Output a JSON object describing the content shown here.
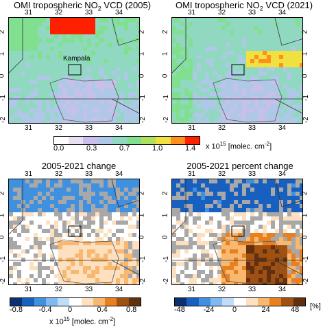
{
  "chart_data": [
    {
      "type": "heatmap",
      "title": "OMI tropospheric NO",
      "title_sub": "2",
      "title_suffix": " VCD (2005)",
      "x_ticks": [
        "31",
        "32",
        "33",
        "34"
      ],
      "y_ticks": [
        "2",
        "1",
        "0",
        "-1",
        "-2"
      ],
      "annotation": "Kampala"
    },
    {
      "type": "heatmap",
      "title": "OMI tropospheric NO",
      "title_sub": "2",
      "title_suffix": " VCD (2021)",
      "x_ticks": [
        "31",
        "32",
        "33",
        "34"
      ],
      "y_ticks": [
        "2",
        "1",
        "0",
        "-1",
        "-2"
      ]
    },
    {
      "type": "heatmap",
      "title": "2005-2021 change",
      "x_ticks": [
        "31",
        "32",
        "33",
        "34"
      ],
      "y_ticks": [
        "2",
        "1",
        "0",
        "-1",
        "-2"
      ]
    },
    {
      "type": "heatmap",
      "title": "2005-2021 percent change",
      "x_ticks": [
        "31",
        "32",
        "33",
        "34"
      ],
      "y_ticks": [
        "2",
        "1",
        "0",
        "-1",
        "-2"
      ]
    }
  ],
  "colorbars": {
    "vcd": {
      "ticks": [
        "0.0",
        "0.3",
        "0.7",
        "1.0",
        "1.4"
      ],
      "unit_prefix": "x 10",
      "unit_exp": "15",
      "unit_suffix": " [molec. cm",
      "unit_exp2": "-2",
      "unit_close": "]",
      "colors": [
        "#ffffff",
        "#e8e0f0",
        "#c8c0e8",
        "#b0c8e8",
        "#90d8c0",
        "#80e090",
        "#b0e060",
        "#f0e040",
        "#ff9020",
        "#ff2000"
      ]
    },
    "change": {
      "ticks": [
        "-0.8",
        "-0.4",
        "0",
        "0.4",
        "0.8"
      ],
      "unit_prefix": "x 10",
      "unit_exp": "15",
      "unit_suffix": " [molec. cm",
      "unit_exp2": "-2",
      "unit_close": "]",
      "colors": [
        "#0a3070",
        "#1860c0",
        "#4090e0",
        "#80b8f0",
        "#c0dcf8",
        "#ffffff",
        "#fde0c0",
        "#f8b870",
        "#e88020",
        "#a05010",
        "#603010"
      ]
    },
    "percent": {
      "ticks": [
        "-48",
        "-24",
        "0",
        "24",
        "48"
      ],
      "unit": "[%]",
      "colors": [
        "#0a3070",
        "#1860c0",
        "#4090e0",
        "#80b8f0",
        "#c0dcf8",
        "#ffffff",
        "#fde0c0",
        "#f8b870",
        "#e88020",
        "#a05010",
        "#603010"
      ]
    }
  },
  "colors": {
    "missing": "#a8a8a8",
    "background": "#b8c4e8"
  }
}
